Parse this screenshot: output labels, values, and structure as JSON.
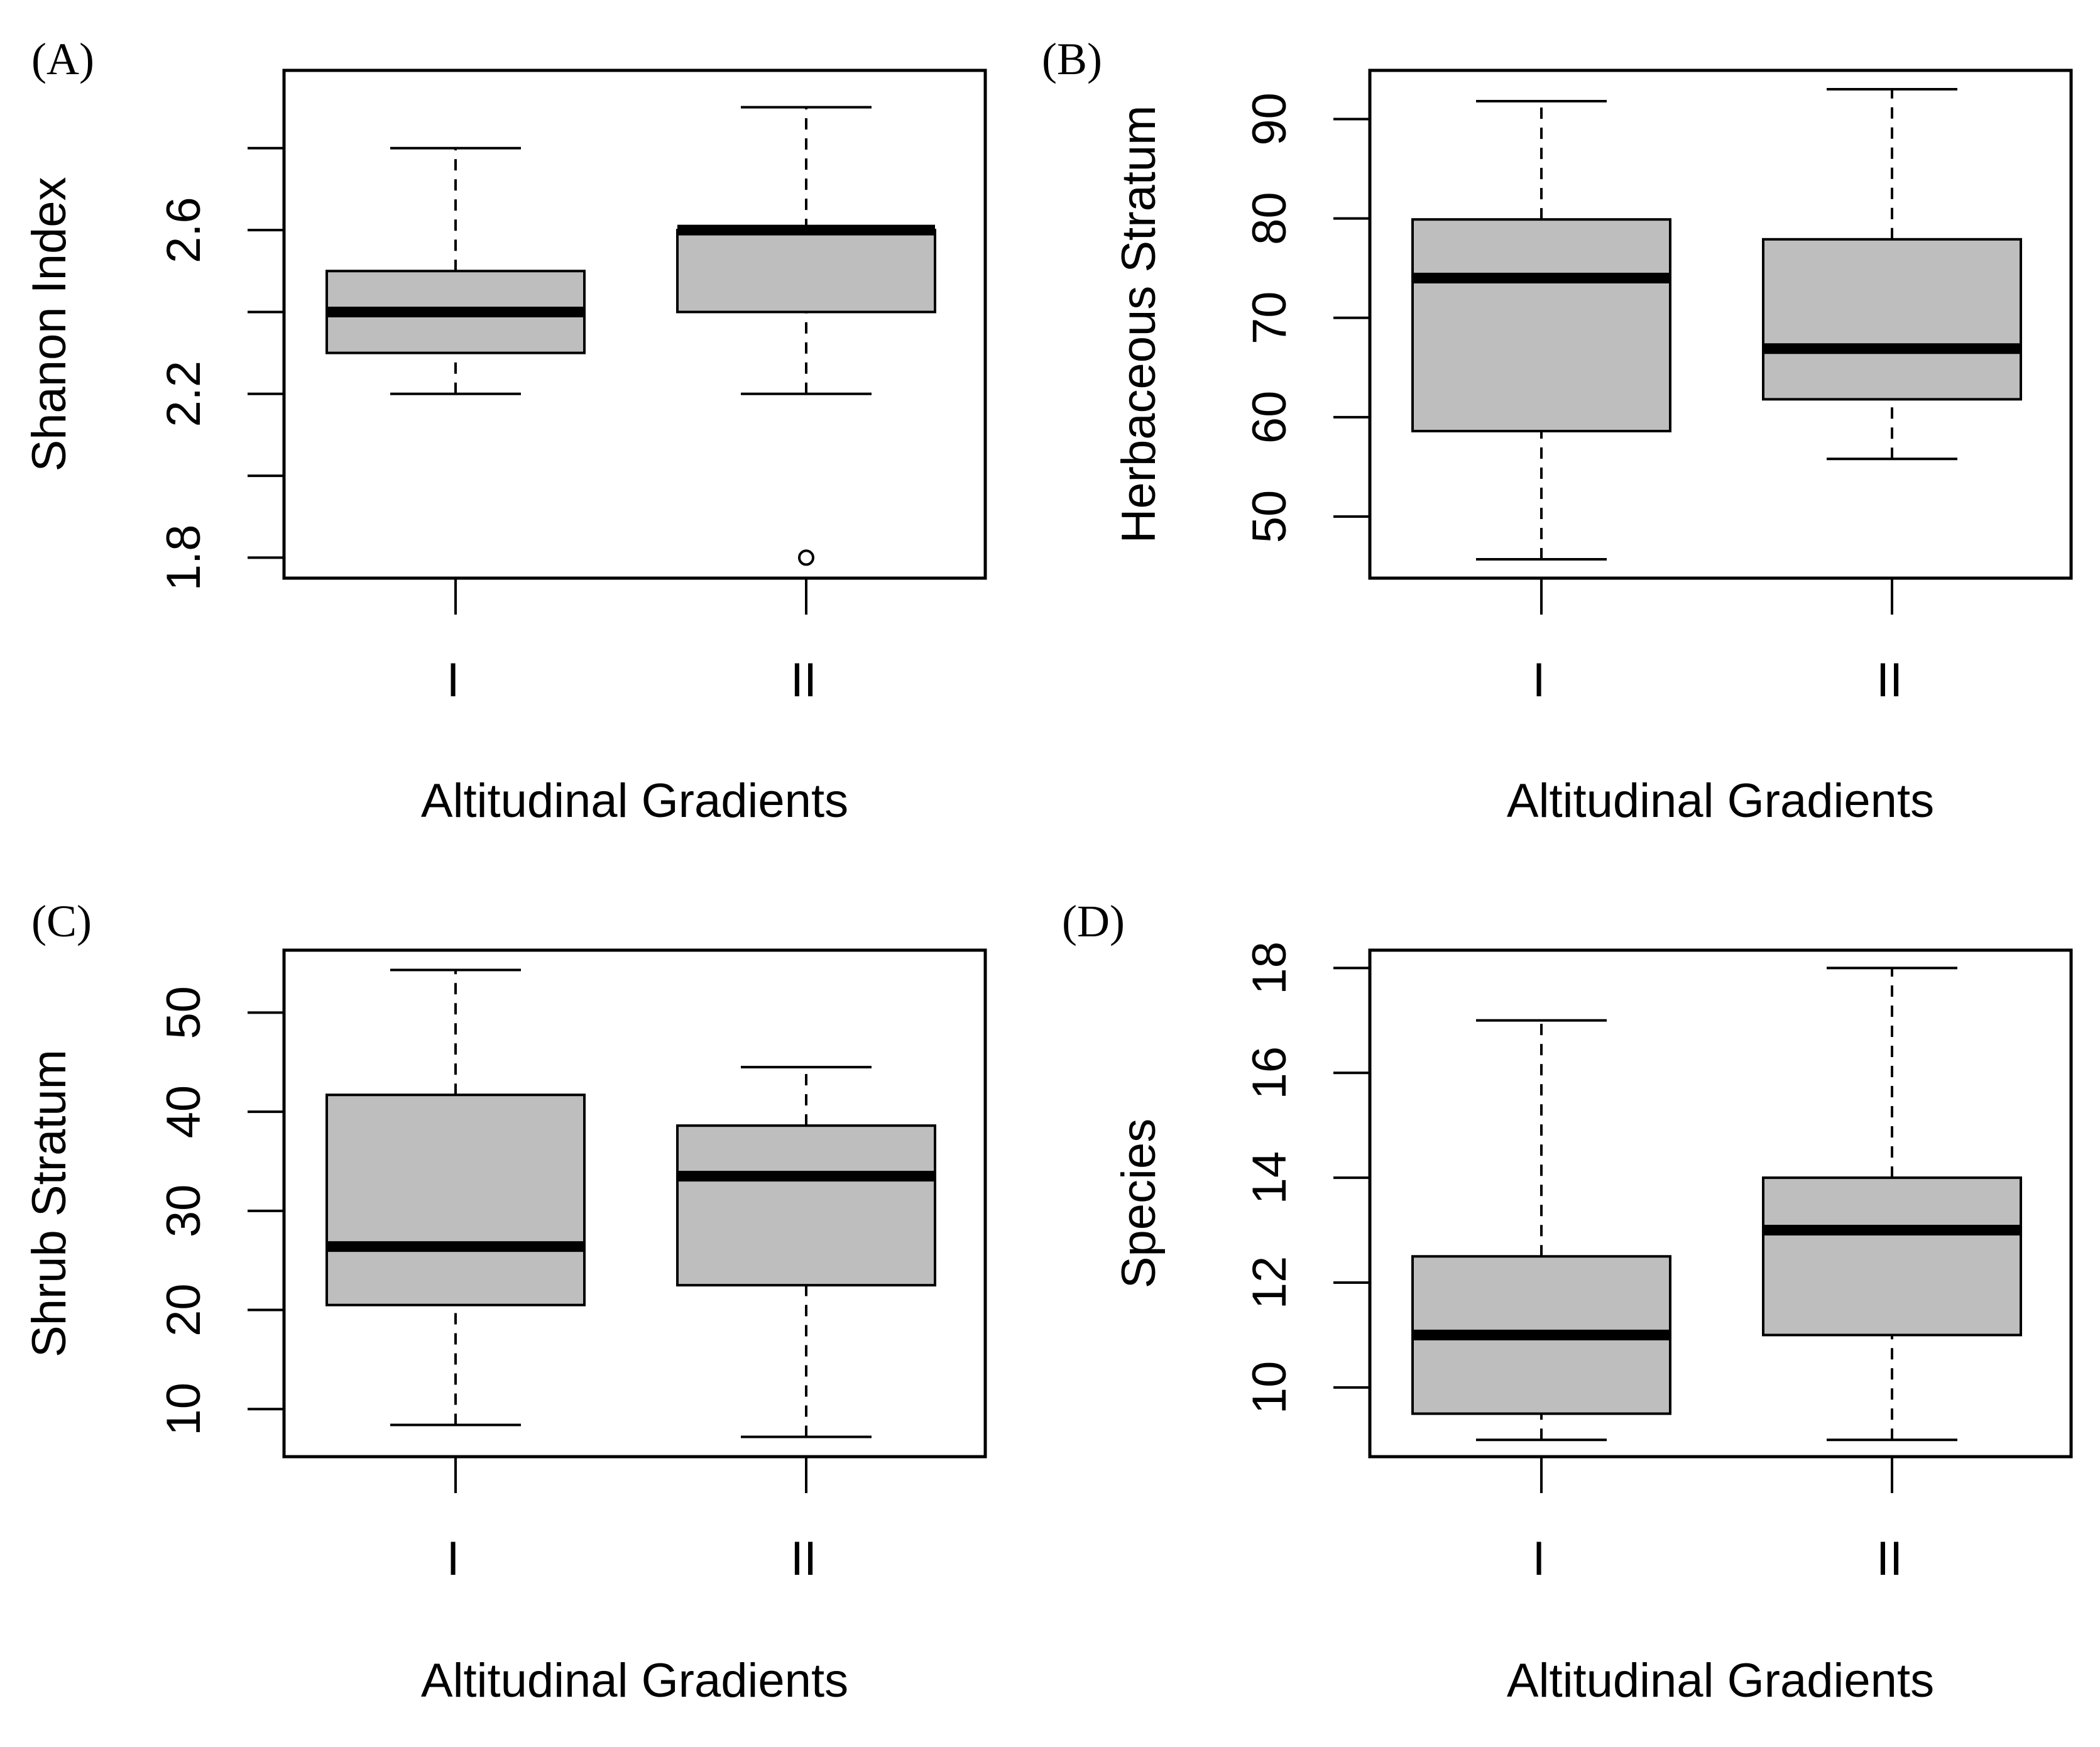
{
  "chart_data": [
    {
      "type": "box",
      "panel": "(A)",
      "title": "",
      "xlabel": "Altitudinal Gradients",
      "ylabel": "Shanon Index",
      "categories": [
        "I",
        "II"
      ],
      "ylim": [
        1.75,
        2.99
      ],
      "yticks": [
        1.8,
        2.0,
        2.2,
        2.4,
        2.6,
        2.8
      ],
      "ytick_labels": [
        "1.8",
        "",
        "2.2",
        "",
        "2.6",
        ""
      ],
      "boxes": [
        {
          "whisker_low": 2.2,
          "q1": 2.3,
          "median": 2.4,
          "q3": 2.5,
          "whisker_high": 2.8,
          "outliers": []
        },
        {
          "whisker_low": 2.2,
          "q1": 2.4,
          "median": 2.6,
          "q3": 2.6,
          "whisker_high": 2.9,
          "outliers": [
            1.8
          ]
        }
      ]
    },
    {
      "type": "box",
      "panel": "(B)",
      "title": "",
      "xlabel": "Altitudinal Gradients",
      "ylabel": "Herbaceous Stratum",
      "categories": [
        "I",
        "II"
      ],
      "ylim": [
        43.8,
        94.9
      ],
      "yticks": [
        50,
        60,
        70,
        80,
        90
      ],
      "ytick_labels": [
        "50",
        "60",
        "70",
        "80",
        "90"
      ],
      "boxes": [
        {
          "whisker_low": 45.7,
          "q1": 58.6,
          "median": 74.0,
          "q3": 79.9,
          "whisker_high": 91.8,
          "outliers": []
        },
        {
          "whisker_low": 55.8,
          "q1": 61.8,
          "median": 66.9,
          "q3": 77.9,
          "whisker_high": 93.0,
          "outliers": []
        }
      ]
    },
    {
      "type": "box",
      "panel": "(C)",
      "title": "",
      "xlabel": "Altitudinal Gradients",
      "ylabel": "Shrub Stratum",
      "categories": [
        "I",
        "II"
      ],
      "ylim": [
        5.2,
        56.3
      ],
      "yticks": [
        10,
        20,
        30,
        40,
        50
      ],
      "ytick_labels": [
        "10",
        "20",
        "30",
        "40",
        "50"
      ],
      "boxes": [
        {
          "whisker_low": 8.4,
          "q1": 20.5,
          "median": 26.4,
          "q3": 41.7,
          "whisker_high": 54.3,
          "outliers": []
        },
        {
          "whisker_low": 7.2,
          "q1": 22.5,
          "median": 33.5,
          "q3": 38.6,
          "whisker_high": 44.5,
          "outliers": []
        }
      ]
    },
    {
      "type": "box",
      "panel": "(D)",
      "title": "",
      "xlabel": "Altitudinal Gradients",
      "ylabel": "Species",
      "categories": [
        "I",
        "II"
      ],
      "ylim": [
        8.68,
        18.34
      ],
      "yticks": [
        10,
        12,
        14,
        16,
        18
      ],
      "ytick_labels": [
        "10",
        "12",
        "14",
        "16",
        "18"
      ],
      "boxes": [
        {
          "whisker_low": 9.0,
          "q1": 9.5,
          "median": 11.0,
          "q3": 12.5,
          "whisker_high": 17.0,
          "outliers": []
        },
        {
          "whisker_low": 9.0,
          "q1": 11.0,
          "median": 13.0,
          "q3": 14.0,
          "whisker_high": 18.0,
          "outliers": []
        }
      ]
    }
  ]
}
